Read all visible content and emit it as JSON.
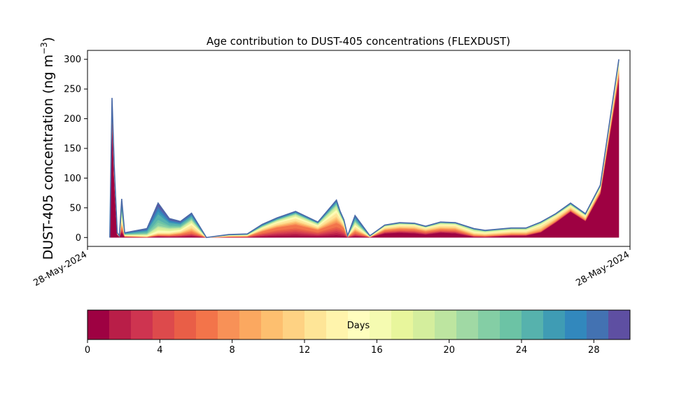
{
  "chart_data": {
    "type": "area",
    "stacked": true,
    "title": "Age contribution to DUST-405 concentrations (FLEXDUST)",
    "ylabel": "DUST-405 concentration (ng m",
    "ylabel_sup": "−3",
    "ylabel_close": ")",
    "xlabel": "",
    "xlim": [
      -3,
      70
    ],
    "ylim": [
      -15,
      315
    ],
    "x_ticklabels": [
      "28-May-2024",
      "28-May-2024"
    ],
    "y_ticks": [
      0,
      50,
      100,
      150,
      200,
      250,
      300
    ],
    "grid": false,
    "x": [
      0,
      0.3,
      0.6,
      1,
      1.3,
      1.6,
      2,
      5,
      6.5,
      8,
      9.5,
      11,
      13,
      16,
      18.5,
      20.5,
      22.5,
      25,
      28,
      30.5,
      31,
      31.5,
      32,
      33,
      35,
      37,
      39,
      41,
      42.5,
      44.5,
      46.5,
      49,
      50.5,
      54,
      56,
      58,
      60,
      62,
      64,
      66,
      68.5
    ],
    "total": [
      0,
      235,
      120,
      8,
      3,
      65,
      8,
      15,
      58,
      32,
      27,
      41,
      0,
      5,
      6,
      22,
      33,
      44,
      26,
      63,
      44,
      30,
      3,
      37,
      3,
      21,
      25,
      24,
      19,
      26,
      25,
      15,
      12,
      16,
      16,
      26,
      40,
      58,
      40,
      88,
      300
    ],
    "band_fractions": {
      "0-1": [
        0,
        0.85,
        0.8,
        0.5,
        0.3,
        0.1,
        0.05,
        0.01,
        0.02,
        0.02,
        0.02,
        0.02,
        0,
        0.01,
        0.01,
        0.01,
        0.01,
        0.01,
        0.01,
        0.01,
        0.01,
        0.01,
        0.01,
        0.02,
        0.05,
        0.28,
        0.28,
        0.25,
        0.22,
        0.28,
        0.24,
        0.04,
        0.03,
        0.16,
        0.17,
        0.32,
        0.62,
        0.74,
        0.68,
        0.82,
        0.88
      ],
      "1-8": [
        0,
        0.05,
        0.05,
        0.2,
        0.2,
        0.2,
        0.2,
        0.05,
        0.05,
        0.1,
        0.2,
        0.22,
        0,
        0.3,
        0.3,
        0.45,
        0.5,
        0.48,
        0.48,
        0.38,
        0.48,
        0.5,
        0.3,
        0.25,
        0.15,
        0.3,
        0.3,
        0.32,
        0.32,
        0.25,
        0.28,
        0.2,
        0.2,
        0.18,
        0.17,
        0.1,
        0.07,
        0.05,
        0.06,
        0.05,
        0.04
      ],
      "8-15": [
        0,
        0.03,
        0.04,
        0.15,
        0.2,
        0.2,
        0.2,
        0.1,
        0.08,
        0.15,
        0.2,
        0.3,
        0,
        0.3,
        0.3,
        0.25,
        0.25,
        0.27,
        0.25,
        0.3,
        0.27,
        0.25,
        0.3,
        0.25,
        0.3,
        0.25,
        0.25,
        0.28,
        0.3,
        0.28,
        0.3,
        0.36,
        0.4,
        0.36,
        0.36,
        0.38,
        0.2,
        0.12,
        0.16,
        0.08,
        0.05
      ],
      "15-22": [
        0,
        0.03,
        0.04,
        0.1,
        0.15,
        0.2,
        0.2,
        0.25,
        0.2,
        0.25,
        0.22,
        0.2,
        0,
        0.2,
        0.2,
        0.14,
        0.13,
        0.14,
        0.16,
        0.18,
        0.14,
        0.14,
        0.2,
        0.2,
        0.25,
        0.12,
        0.12,
        0.1,
        0.1,
        0.14,
        0.13,
        0.3,
        0.27,
        0.24,
        0.24,
        0.15,
        0.08,
        0.05,
        0.06,
        0.03,
        0.02
      ],
      "22-30": [
        0,
        0.04,
        0.07,
        0.05,
        0.15,
        0.3,
        0.35,
        0.59,
        0.65,
        0.48,
        0.36,
        0.26,
        0,
        0.19,
        0.19,
        0.15,
        0.11,
        0.1,
        0.1,
        0.13,
        0.1,
        0.1,
        0.19,
        0.28,
        0.25,
        0.05,
        0.05,
        0.05,
        0.06,
        0.05,
        0.05,
        0.1,
        0.1,
        0.06,
        0.06,
        0.05,
        0.03,
        0.04,
        0.04,
        0.02,
        0.01
      ]
    },
    "colorbar": {
      "label": "Days",
      "min": 0,
      "max": 30,
      "ticks": [
        0,
        4,
        8,
        12,
        16,
        20,
        24,
        28
      ],
      "colors": [
        "#9e0142",
        "#b91e48",
        "#ce3450",
        "#dd4a4c",
        "#e95e47",
        "#f3744a",
        "#f89157",
        "#fba860",
        "#fdbf6f",
        "#fed283",
        "#fee597",
        "#fff4ac",
        "#fffebe",
        "#f5fbb1",
        "#e8f69c",
        "#d4ee9d",
        "#bde5a0",
        "#a0d9a4",
        "#84cea5",
        "#6cc3a5",
        "#56b2ad",
        "#3f9cb4",
        "#3288bd",
        "#4372b2",
        "#5e4fa2"
      ]
    },
    "outline_color": "#4a6aa8"
  }
}
